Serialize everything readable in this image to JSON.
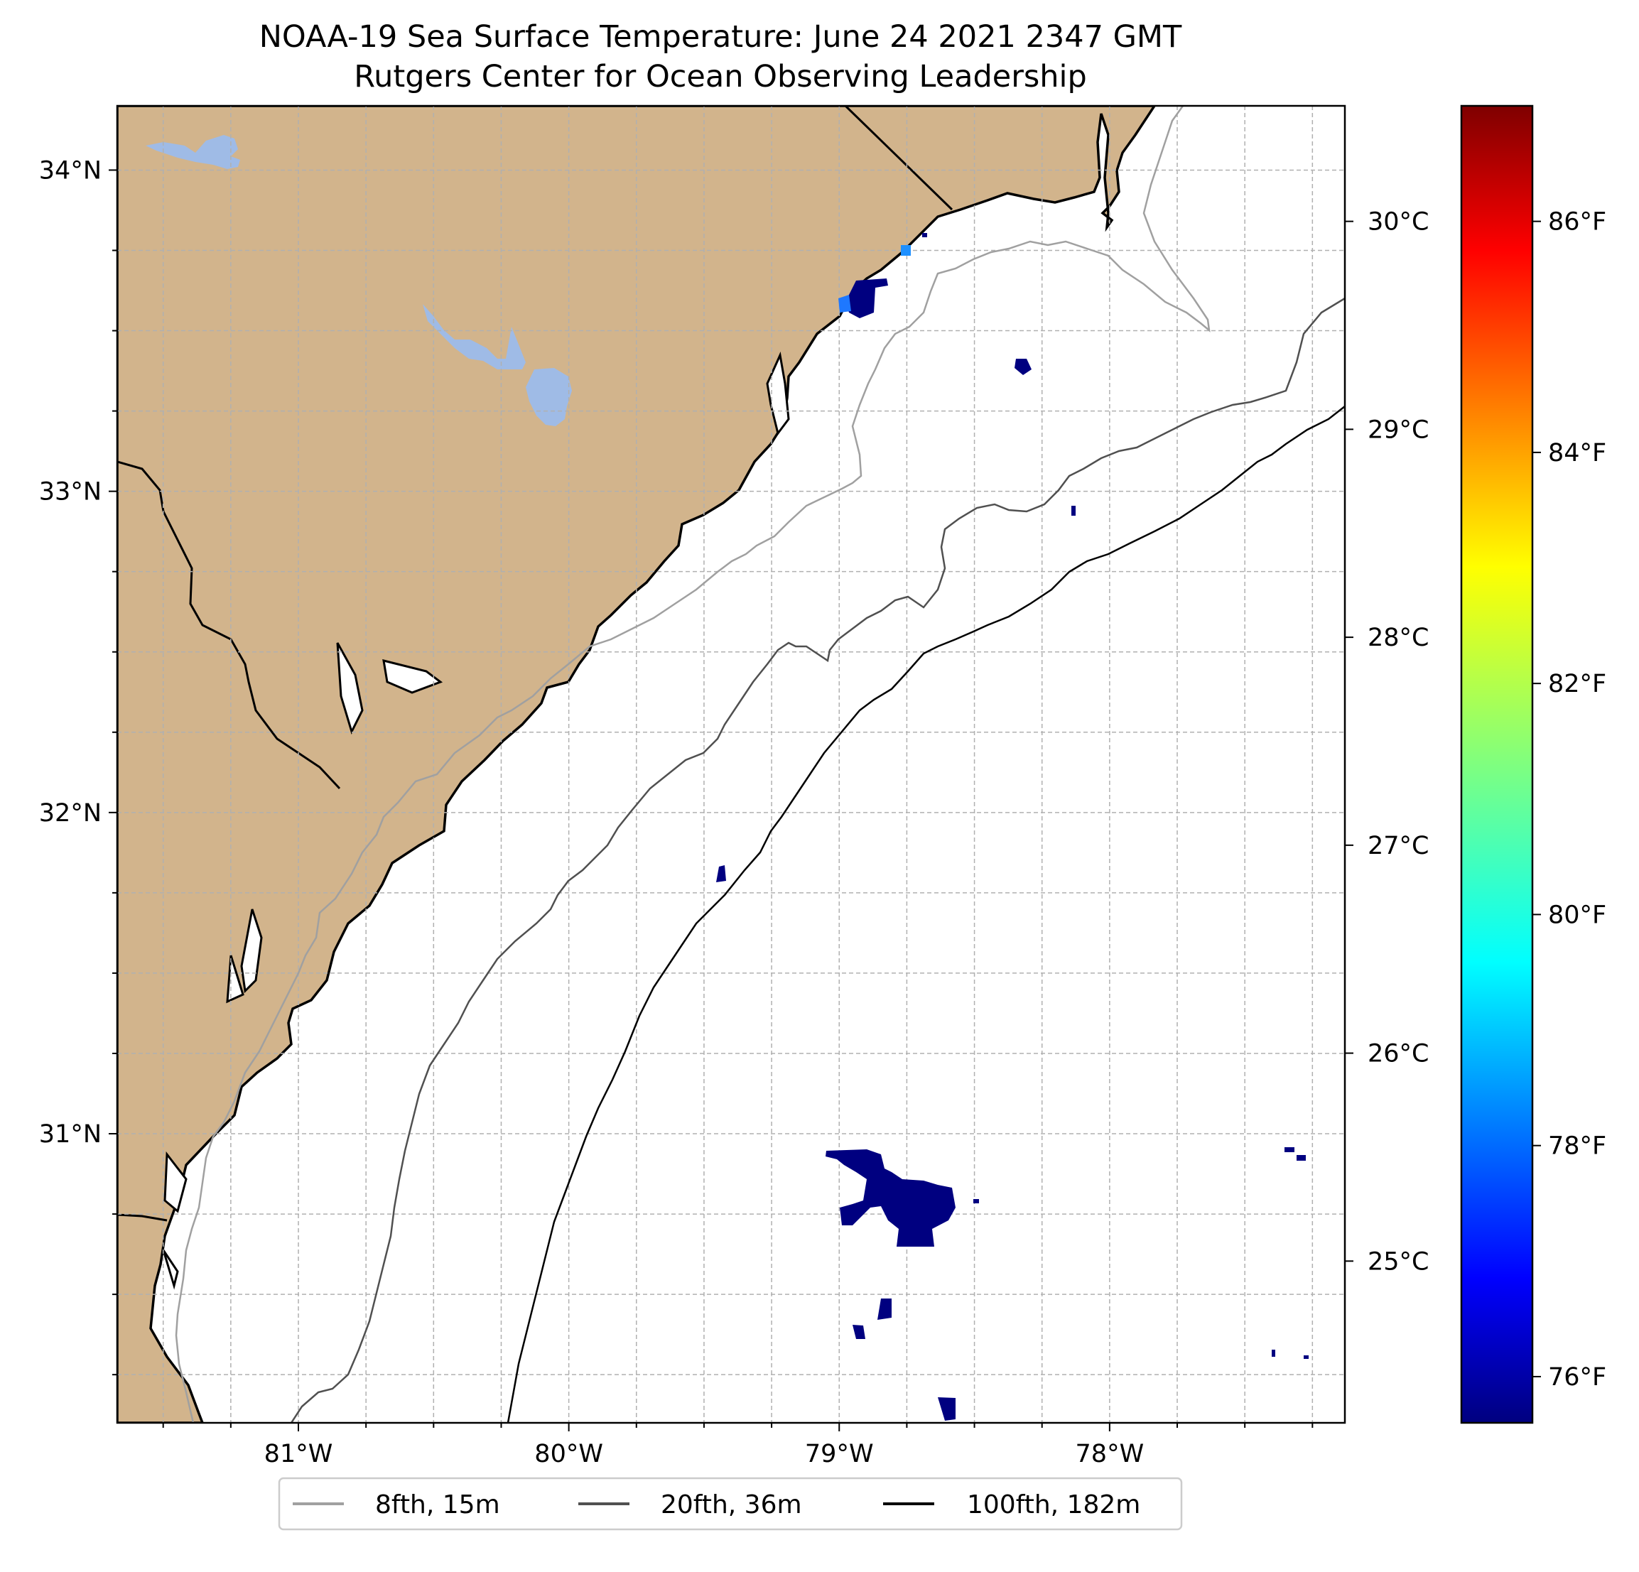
{
  "title": {
    "line1": "NOAA-19 Sea Surface Temperature: June 24 2021 2347 GMT",
    "line2": "Rutgers Center for Ocean Observing Leadership"
  },
  "map": {
    "lon_range": [
      -81.67,
      -77.13
    ],
    "lat_range": [
      30.1,
      34.2
    ],
    "lon_ticks": [
      {
        "value": -81,
        "label": "81°W"
      },
      {
        "value": -80,
        "label": "80°W"
      },
      {
        "value": -79,
        "label": "79°W"
      },
      {
        "value": -78,
        "label": "78°W"
      }
    ],
    "lat_ticks": [
      {
        "value": 34,
        "label": "34°N"
      },
      {
        "value": 33,
        "label": "33°N"
      },
      {
        "value": 32,
        "label": "32°N"
      },
      {
        "value": 31,
        "label": "31°N"
      }
    ],
    "colors": {
      "land": "#d2b48c",
      "lakes": "#9fbbe6",
      "ocean": "#ffffff",
      "coastline": "#000000",
      "grid": "#b0b0b0",
      "sst_cold": "#000080",
      "sst_mid": "#1e90ff"
    }
  },
  "colorbar": {
    "celsius": [
      {
        "value": 30,
        "label": "30°C"
      },
      {
        "value": 29,
        "label": "29°C"
      },
      {
        "value": 28,
        "label": "28°C"
      },
      {
        "value": 27,
        "label": "27°C"
      },
      {
        "value": 26,
        "label": "26°C"
      },
      {
        "value": 25,
        "label": "25°C"
      }
    ],
    "fahrenheit": [
      {
        "value": 86,
        "label": "86°F"
      },
      {
        "value": 84,
        "label": "84°F"
      },
      {
        "value": 82,
        "label": "82°F"
      },
      {
        "value": 80,
        "label": "80°F"
      },
      {
        "value": 78,
        "label": "78°F"
      },
      {
        "value": 76,
        "label": "76°F"
      }
    ],
    "range_f": [
      75.6,
      87.0
    ],
    "colormap": [
      "#00007f",
      "#0000ff",
      "#007fff",
      "#00ffff",
      "#7fff7f",
      "#ffff00",
      "#ff7f00",
      "#ff0000",
      "#7f0000"
    ]
  },
  "legend": {
    "items": [
      {
        "label": "8fth, 15m",
        "color": "#a0a0a0"
      },
      {
        "label": "20fth, 36m",
        "color": "#505050"
      },
      {
        "label": "100fth, 182m",
        "color": "#000000"
      }
    ]
  }
}
